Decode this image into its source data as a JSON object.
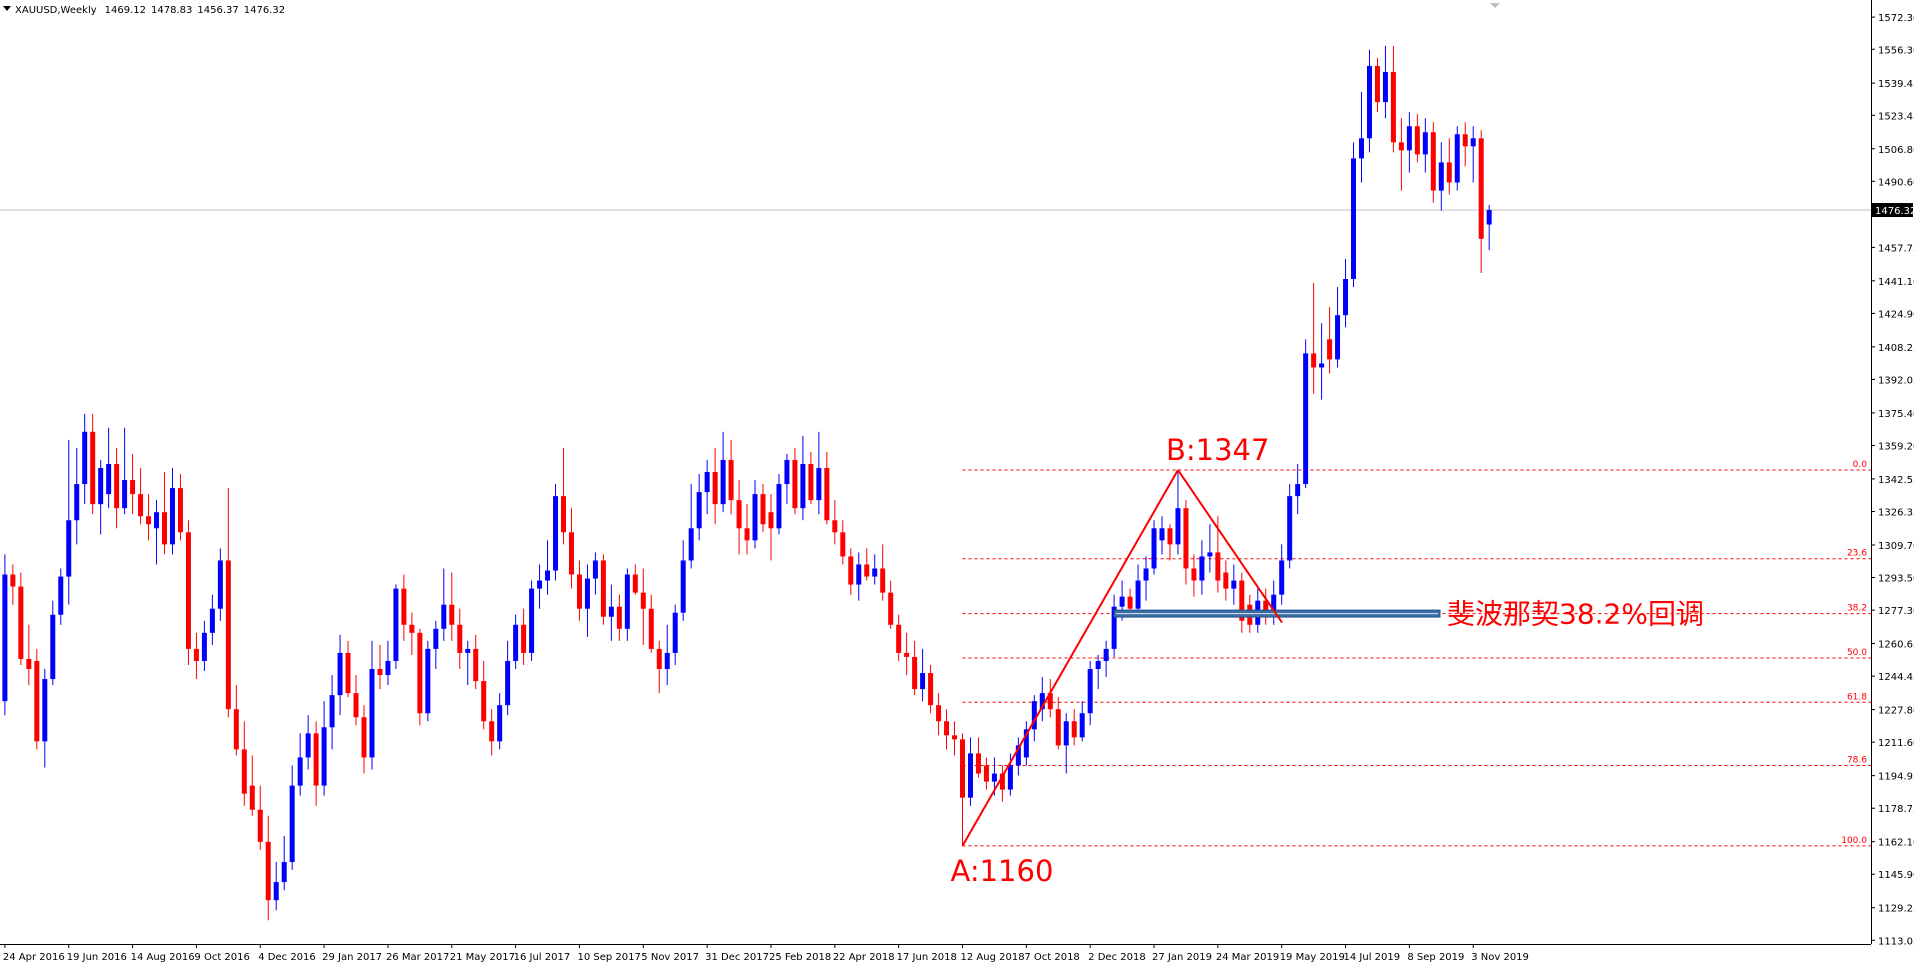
{
  "chart_data": {
    "type": "candlestick",
    "title": "XAUUSD,Weekly",
    "up_color": "#0000ff",
    "down_color": "#ff0000",
    "ylim": [
      1111.2,
      1580.8
    ],
    "yticks": [
      {
        "value": 1572.3,
        "label": "1572.30"
      },
      {
        "value": 1556.3,
        "label": "1556.30"
      },
      1539.45,
      1523.45,
      {
        "value": 1506.8,
        "label": "1506.80"
      },
      {
        "value": 1490.6,
        "label": "1490.60"
      },
      1457.75,
      {
        "value": 1441.1,
        "label": "1441.10"
      },
      {
        "value": 1424.9,
        "label": "1424.90"
      },
      1408.25,
      1392.05,
      {
        "value": 1375.4,
        "label": "1375.40"
      },
      {
        "value": 1359.2,
        "label": "1359.20"
      },
      1342.55,
      1326.35,
      {
        "value": 1309.7,
        "label": "1309.70"
      },
      {
        "value": 1293.5,
        "label": "1293.50"
      },
      {
        "value": 1277.3,
        "label": "1277.30"
      },
      1260.65,
      1244.45,
      {
        "value": 1227.8,
        "label": "1227.80"
      },
      {
        "value": 1211.6,
        "label": "1211.60"
      },
      1194.95,
      1178.75,
      {
        "value": 1162.1,
        "label": "1162.10"
      },
      {
        "value": 1145.9,
        "label": "1145.90"
      },
      1129.25,
      1113.05
    ],
    "categories": [
      "24 Apr 2016",
      null,
      null,
      null,
      null,
      null,
      null,
      null,
      "19 Jun 2016",
      null,
      null,
      null,
      null,
      null,
      null,
      null,
      "14 Aug 2016",
      null,
      null,
      null,
      null,
      null,
      null,
      null,
      "9 Oct 2016",
      null,
      null,
      null,
      null,
      null,
      null,
      null,
      "4 Dec 2016",
      null,
      null,
      null,
      null,
      null,
      null,
      null,
      "29 Jan 2017",
      null,
      null,
      null,
      null,
      null,
      null,
      null,
      "26 Mar 2017",
      null,
      null,
      null,
      null,
      null,
      null,
      null,
      "21 May 2017",
      null,
      null,
      null,
      null,
      null,
      null,
      null,
      "16 Jul 2017",
      null,
      null,
      null,
      null,
      null,
      null,
      null,
      "10 Sep 2017",
      null,
      null,
      null,
      null,
      null,
      null,
      null,
      "5 Nov 2017",
      null,
      null,
      null,
      null,
      null,
      null,
      null,
      "31 Dec 2017",
      null,
      null,
      null,
      null,
      null,
      null,
      null,
      "25 Feb 2018",
      null,
      null,
      null,
      null,
      null,
      null,
      null,
      "22 Apr 2018",
      null,
      null,
      null,
      null,
      null,
      null,
      null,
      "17 Jun 2018",
      null,
      null,
      null,
      null,
      null,
      null,
      null,
      "12 Aug 2018",
      null,
      null,
      null,
      null,
      null,
      null,
      null,
      "7 Oct 2018",
      null,
      null,
      null,
      null,
      null,
      null,
      null,
      "2 Dec 2018",
      null,
      null,
      null,
      null,
      null,
      null,
      null,
      "27 Jan 2019",
      null,
      null,
      null,
      null,
      null,
      null,
      null,
      "24 Mar 2019",
      null,
      null,
      null,
      null,
      null,
      null,
      null,
      "19 May 2019",
      null,
      null,
      null,
      null,
      null,
      null,
      null,
      "14 Jul 2019",
      null,
      null,
      null,
      null,
      null,
      null,
      null,
      "8 Sep 2019",
      null,
      null,
      null,
      null,
      null,
      null,
      null,
      "3 Nov 2019",
      null,
      null
    ],
    "ohlc": [
      [
        1232,
        1305,
        1225,
        1295
      ],
      [
        1295,
        1300,
        1280,
        1289
      ],
      [
        1289,
        1296,
        1250,
        1253
      ],
      [
        1253,
        1270,
        1240,
        1248
      ],
      [
        1252,
        1258,
        1208,
        1212
      ],
      [
        1212,
        1248,
        1199,
        1243
      ],
      [
        1243,
        1282,
        1240,
        1275
      ],
      [
        1275,
        1298,
        1270,
        1294
      ],
      [
        1294,
        1362,
        1280,
        1322
      ],
      [
        1322,
        1358,
        1310,
        1340
      ],
      [
        1340,
        1375,
        1330,
        1366
      ],
      [
        1366,
        1375,
        1325,
        1330
      ],
      [
        1330,
        1352,
        1315,
        1348
      ],
      [
        1335,
        1368,
        1328,
        1350
      ],
      [
        1350,
        1358,
        1318,
        1328
      ],
      [
        1328,
        1368,
        1325,
        1342
      ],
      [
        1342,
        1355,
        1325,
        1335
      ],
      [
        1335,
        1348,
        1320,
        1324
      ],
      [
        1324,
        1335,
        1312,
        1320
      ],
      [
        1318,
        1332,
        1300,
        1326
      ],
      [
        1326,
        1346,
        1305,
        1310
      ],
      [
        1310,
        1348,
        1305,
        1338
      ],
      [
        1338,
        1345,
        1312,
        1316
      ],
      [
        1316,
        1322,
        1250,
        1258
      ],
      [
        1258,
        1266,
        1243,
        1252
      ],
      [
        1252,
        1272,
        1247,
        1266
      ],
      [
        1266,
        1285,
        1260,
        1278
      ],
      [
        1278,
        1308,
        1272,
        1302
      ],
      [
        1302,
        1338,
        1224,
        1228
      ],
      [
        1228,
        1240,
        1205,
        1208
      ],
      [
        1208,
        1222,
        1180,
        1186
      ],
      [
        1190,
        1205,
        1175,
        1178
      ],
      [
        1178,
        1190,
        1158,
        1162
      ],
      [
        1162,
        1175,
        1123,
        1133
      ],
      [
        1133,
        1152,
        1128,
        1142
      ],
      [
        1142,
        1165,
        1138,
        1152
      ],
      [
        1152,
        1200,
        1148,
        1190
      ],
      [
        1190,
        1216,
        1185,
        1204
      ],
      [
        1204,
        1225,
        1198,
        1216
      ],
      [
        1216,
        1222,
        1180,
        1190
      ],
      [
        1190,
        1232,
        1185,
        1219
      ],
      [
        1219,
        1245,
        1208,
        1235
      ],
      [
        1235,
        1265,
        1225,
        1256
      ],
      [
        1256,
        1262,
        1234,
        1236
      ],
      [
        1236,
        1245,
        1220,
        1224
      ],
      [
        1224,
        1230,
        1196,
        1204
      ],
      [
        1204,
        1262,
        1198,
        1248
      ],
      [
        1248,
        1260,
        1238,
        1245
      ],
      [
        1245,
        1262,
        1240,
        1252
      ],
      [
        1252,
        1290,
        1248,
        1288
      ],
      [
        1288,
        1295,
        1262,
        1270
      ],
      [
        1270,
        1276,
        1255,
        1266
      ],
      [
        1266,
        1268,
        1220,
        1226
      ],
      [
        1226,
        1262,
        1222,
        1258
      ],
      [
        1258,
        1272,
        1248,
        1268
      ],
      [
        1268,
        1298,
        1262,
        1280
      ],
      [
        1280,
        1296,
        1262,
        1270
      ],
      [
        1270,
        1278,
        1248,
        1256
      ],
      [
        1256,
        1262,
        1240,
        1258
      ],
      [
        1258,
        1265,
        1238,
        1242
      ],
      [
        1242,
        1252,
        1218,
        1222
      ],
      [
        1222,
        1228,
        1205,
        1212
      ],
      [
        1212,
        1236,
        1208,
        1230
      ],
      [
        1230,
        1262,
        1225,
        1252
      ],
      [
        1252,
        1275,
        1248,
        1270
      ],
      [
        1270,
        1278,
        1250,
        1256
      ],
      [
        1256,
        1292,
        1252,
        1288
      ],
      [
        1288,
        1300,
        1278,
        1292
      ],
      [
        1292,
        1312,
        1285,
        1297
      ],
      [
        1297,
        1340,
        1292,
        1334
      ],
      [
        1334,
        1358,
        1310,
        1316
      ],
      [
        1316,
        1328,
        1288,
        1295
      ],
      [
        1295,
        1302,
        1272,
        1278
      ],
      [
        1278,
        1300,
        1264,
        1293
      ],
      [
        1293,
        1306,
        1285,
        1302
      ],
      [
        1302,
        1305,
        1270,
        1274
      ],
      [
        1274,
        1290,
        1262,
        1279
      ],
      [
        1279,
        1285,
        1262,
        1268
      ],
      [
        1268,
        1298,
        1262,
        1295
      ],
      [
        1295,
        1300,
        1285,
        1286
      ],
      [
        1286,
        1298,
        1260,
        1278
      ],
      [
        1278,
        1285,
        1256,
        1258
      ],
      [
        1258,
        1262,
        1236,
        1248
      ],
      [
        1248,
        1270,
        1240,
        1256
      ],
      [
        1256,
        1280,
        1250,
        1276
      ],
      [
        1276,
        1312,
        1272,
        1302
      ],
      [
        1302,
        1340,
        1298,
        1318
      ],
      [
        1318,
        1345,
        1312,
        1336
      ],
      [
        1336,
        1352,
        1325,
        1346
      ],
      [
        1346,
        1358,
        1320,
        1330
      ],
      [
        1330,
        1366,
        1326,
        1352
      ],
      [
        1352,
        1362,
        1325,
        1332
      ],
      [
        1332,
        1342,
        1305,
        1318
      ],
      [
        1318,
        1330,
        1305,
        1312
      ],
      [
        1312,
        1342,
        1308,
        1335
      ],
      [
        1335,
        1340,
        1316,
        1320
      ],
      [
        1326,
        1335,
        1302,
        1318
      ],
      [
        1318,
        1345,
        1315,
        1340
      ],
      [
        1340,
        1355,
        1330,
        1352
      ],
      [
        1352,
        1358,
        1325,
        1328
      ],
      [
        1328,
        1364,
        1322,
        1350
      ],
      [
        1350,
        1356,
        1330,
        1332
      ],
      [
        1332,
        1366,
        1325,
        1348
      ],
      [
        1348,
        1356,
        1320,
        1322
      ],
      [
        1322,
        1332,
        1310,
        1316
      ],
      [
        1316,
        1322,
        1300,
        1304
      ],
      [
        1304,
        1308,
        1285,
        1290
      ],
      [
        1290,
        1306,
        1282,
        1300
      ],
      [
        1300,
        1308,
        1292,
        1294
      ],
      [
        1294,
        1305,
        1290,
        1298
      ],
      [
        1298,
        1310,
        1282,
        1286
      ],
      [
        1286,
        1292,
        1268,
        1270
      ],
      [
        1270,
        1275,
        1252,
        1256
      ],
      [
        1256,
        1266,
        1245,
        1254
      ],
      [
        1254,
        1262,
        1235,
        1238
      ],
      [
        1238,
        1258,
        1232,
        1246
      ],
      [
        1246,
        1250,
        1226,
        1230
      ],
      [
        1230,
        1236,
        1215,
        1222
      ],
      [
        1222,
        1228,
        1208,
        1215
      ],
      [
        1215,
        1222,
        1205,
        1213
      ],
      [
        1213,
        1216,
        1160,
        1184
      ],
      [
        1184,
        1214,
        1180,
        1206
      ],
      [
        1206,
        1214,
        1194,
        1196
      ],
      [
        1200,
        1204,
        1188,
        1192
      ],
      [
        1192,
        1204,
        1185,
        1196
      ],
      [
        1196,
        1200,
        1182,
        1188
      ],
      [
        1188,
        1206,
        1185,
        1200
      ],
      [
        1200,
        1214,
        1195,
        1210
      ],
      [
        1204,
        1222,
        1200,
        1218
      ],
      [
        1218,
        1235,
        1212,
        1232
      ],
      [
        1228,
        1244,
        1222,
        1236
      ],
      [
        1236,
        1243,
        1224,
        1228
      ],
      [
        1228,
        1234,
        1208,
        1210
      ],
      [
        1210,
        1226,
        1196,
        1222
      ],
      [
        1222,
        1228,
        1210,
        1214
      ],
      [
        1214,
        1232,
        1212,
        1226
      ],
      [
        1226,
        1252,
        1220,
        1248
      ],
      [
        1248,
        1255,
        1238,
        1252
      ],
      [
        1252,
        1262,
        1244,
        1258
      ],
      [
        1258,
        1285,
        1254,
        1279
      ],
      [
        1279,
        1292,
        1272,
        1284
      ],
      [
        1284,
        1288,
        1275,
        1278
      ],
      [
        1278,
        1300,
        1275,
        1292
      ],
      [
        1292,
        1304,
        1282,
        1298
      ],
      [
        1298,
        1322,
        1295,
        1318
      ],
      [
        1312,
        1324,
        1305,
        1318
      ],
      [
        1318,
        1320,
        1302,
        1310
      ],
      [
        1310,
        1347,
        1305,
        1328
      ],
      [
        1328,
        1332,
        1290,
        1298
      ],
      [
        1298,
        1305,
        1284,
        1292
      ],
      [
        1292,
        1312,
        1285,
        1304
      ],
      [
        1304,
        1320,
        1296,
        1306
      ],
      [
        1306,
        1324,
        1286,
        1292
      ],
      [
        1296,
        1302,
        1282,
        1288
      ],
      [
        1288,
        1300,
        1280,
        1292
      ],
      [
        1292,
        1296,
        1266,
        1272
      ],
      [
        1280,
        1285,
        1266,
        1270
      ],
      [
        1270,
        1288,
        1266,
        1282
      ],
      [
        1282,
        1288,
        1270,
        1275
      ],
      [
        1275,
        1292,
        1270,
        1285
      ],
      [
        1285,
        1310,
        1280,
        1302
      ],
      [
        1302,
        1340,
        1298,
        1334
      ],
      [
        1334,
        1350,
        1325,
        1340
      ],
      [
        1340,
        1412,
        1338,
        1405
      ],
      [
        1405,
        1440,
        1385,
        1398
      ],
      [
        1398,
        1420,
        1382,
        1400
      ],
      [
        1412,
        1428,
        1395,
        1402
      ],
      [
        1402,
        1438,
        1398,
        1424
      ],
      [
        1424,
        1452,
        1418,
        1442
      ],
      [
        1442,
        1510,
        1438,
        1502
      ],
      [
        1502,
        1535,
        1490,
        1512
      ],
      [
        1512,
        1556,
        1505,
        1548
      ],
      [
        1548,
        1552,
        1525,
        1530
      ],
      [
        1530,
        1558,
        1522,
        1545
      ],
      [
        1545,
        1558,
        1505,
        1510
      ],
      [
        1510,
        1522,
        1486,
        1506
      ],
      [
        1506,
        1525,
        1495,
        1518
      ],
      [
        1518,
        1524,
        1500,
        1504
      ],
      [
        1504,
        1522,
        1495,
        1515
      ],
      [
        1515,
        1520,
        1480,
        1486
      ],
      [
        1486,
        1510,
        1476,
        1500
      ],
      [
        1500,
        1512,
        1484,
        1490
      ],
      [
        1490,
        1518,
        1486,
        1514
      ],
      [
        1514,
        1520,
        1498,
        1508
      ],
      [
        1508,
        1518,
        1490,
        1512
      ],
      [
        1512,
        1516,
        1445,
        1462
      ],
      [
        1469.12,
        1478.83,
        1456.37,
        1476.32
      ]
    ],
    "swing_points": [
      {
        "label": "A:1160",
        "value": 1160
      },
      {
        "label": "B:1347",
        "value": 1347
      }
    ],
    "fib_levels": [
      {
        "value": 0,
        "label": "0.0"
      },
      23.6,
      38.2,
      {
        "value": 50,
        "label": "50.0"
      },
      61.8,
      78.6,
      {
        "value": 100,
        "label": "100.0"
      }
    ],
    "fib_color": "#ff0000",
    "note": "斐波那契38.2%回调"
  }
}
